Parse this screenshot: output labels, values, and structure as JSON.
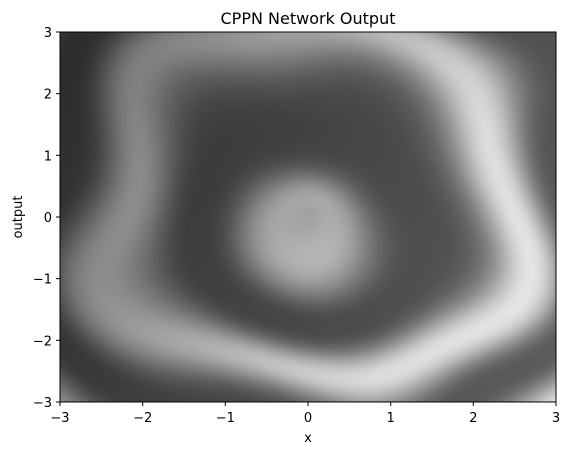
{
  "chart_data": {
    "type": "heatmap",
    "title": "CPPN Network Output",
    "xlabel": "x",
    "ylabel": "output",
    "xlim": [
      -3,
      3
    ],
    "ylim": [
      -3,
      3
    ],
    "colormap": "gray",
    "grid": false,
    "x_ticks": [
      -3,
      -2,
      -1,
      0,
      1,
      2,
      3
    ],
    "y_ticks": [
      -3,
      -2,
      -1,
      0,
      1,
      2,
      3
    ],
    "x_tick_labels": [
      "−3",
      "−2",
      "−1",
      "0",
      "1",
      "2",
      "3"
    ],
    "y_tick_labels": [
      "−3",
      "−2",
      "−1",
      "0",
      "1",
      "2",
      "3"
    ]
  }
}
